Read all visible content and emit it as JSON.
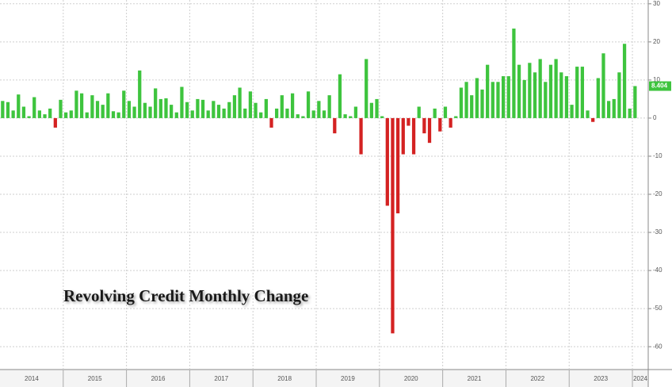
{
  "chart_data": {
    "type": "bar",
    "title": "Revolving Credit Monthly Change",
    "x_labels": [
      "2014",
      "2015",
      "2016",
      "2017",
      "2018",
      "2019",
      "2020",
      "2021",
      "2022",
      "2023",
      "2024"
    ],
    "categories": [
      null,
      null,
      null,
      null,
      null,
      null,
      null,
      null,
      null,
      null,
      null,
      null,
      null,
      null,
      null,
      null,
      null,
      null,
      null,
      null,
      null,
      null,
      null,
      null,
      null,
      null,
      null,
      null,
      null,
      null,
      null,
      null,
      null,
      null,
      null,
      null,
      null,
      null,
      null,
      null,
      null,
      null,
      null,
      null,
      null,
      null,
      null,
      null,
      null,
      null,
      null,
      null,
      null,
      null,
      null,
      null,
      null,
      null,
      null,
      null,
      null,
      null,
      null,
      null,
      null,
      null,
      null,
      null,
      null,
      null,
      null,
      null,
      null,
      null,
      null,
      null,
      null,
      null,
      null,
      null,
      null,
      null,
      null,
      null,
      null,
      null,
      null,
      null,
      null,
      null,
      null,
      null,
      null,
      null,
      null,
      null,
      null,
      null,
      null,
      null,
      null,
      null,
      null,
      null,
      null,
      null,
      null,
      null,
      null,
      null,
      null,
      null,
      null,
      null,
      null,
      null,
      null,
      null,
      null,
      null,
      null
    ],
    "values": [
      4.5,
      4.2,
      2,
      6.2,
      3,
      0.5,
      5.5,
      2,
      1,
      2.5,
      -2.5,
      4.8,
      1.5,
      2,
      7.2,
      6.5,
      1.5,
      6,
      4.5,
      3.5,
      6.5,
      1.8,
      1.5,
      7.2,
      4.5,
      3,
      12.5,
      4,
      3,
      7.8,
      5,
      5.2,
      3.5,
      1.5,
      8.2,
      4.2,
      2,
      5,
      4.8,
      2,
      4.5,
      3.5,
      2.5,
      4.2,
      6,
      8,
      2.5,
      7,
      4,
      1.5,
      5,
      -2.5,
      2.5,
      6,
      2.5,
      6.5,
      1,
      0.5,
      7,
      2,
      4.5,
      2,
      6,
      -4,
      11.5,
      1,
      0.5,
      3,
      -9.5,
      15.5,
      4,
      5,
      0.5,
      -23,
      -56.5,
      -25,
      -9.5,
      -2,
      -9.5,
      3,
      -4,
      -6.5,
      2.5,
      -3.5,
      3,
      -2.5,
      0.5,
      8,
      9.5,
      6,
      10.5,
      7.5,
      14,
      9.5,
      9.5,
      11,
      11,
      23.5,
      14,
      10,
      14.5,
      12,
      15.5,
      9.5,
      14,
      15.5,
      12,
      11,
      3.5,
      13.5,
      13.5,
      2,
      -1,
      10.5,
      17,
      4.5,
      5,
      12,
      19.5,
      2.5,
      8.404
    ],
    "colors": {
      "positive": "#3ec43e",
      "negative": "#d42222"
    },
    "ylim": [
      -66,
      31
    ],
    "yticks": [
      30,
      20,
      10,
      0,
      -10,
      -20,
      -30,
      -40,
      -50,
      -60
    ],
    "grid": true
  }
}
